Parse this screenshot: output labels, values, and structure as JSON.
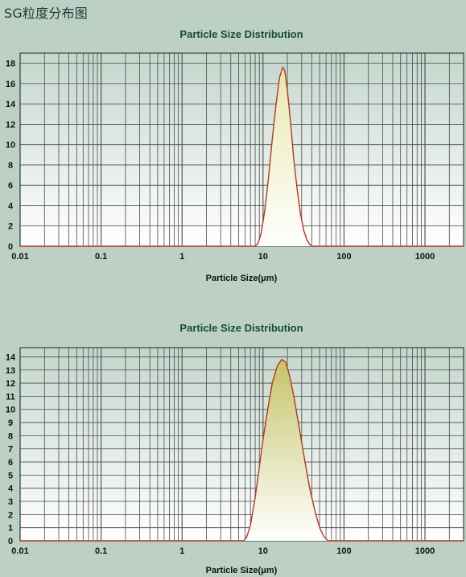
{
  "page": {
    "title": "SG粒度分布图"
  },
  "colors": {
    "background": "#bcd0c6",
    "plot_top": "#c3d6cc",
    "plot_bottom": "#ffffff",
    "grid": "#4a4a4a",
    "curve": "#b5381c",
    "fill_top_1": "#e6e8b0",
    "fill_top_2": "#c5c46a",
    "fill_bottom": "#ffffff",
    "title": "#174a3a"
  },
  "chart_data": [
    {
      "type": "area",
      "title": "Particle Size Distribution",
      "xlabel": "Particle Size(μm)",
      "ylabel": "",
      "x_scale": "log",
      "xlim": [
        0.01,
        3000
      ],
      "ylim": [
        0,
        19
      ],
      "xticks": [
        {
          "value": 0.01,
          "label": "0.01"
        },
        {
          "value": 0.1,
          "label": "0.1"
        },
        {
          "value": 1,
          "label": "1"
        },
        {
          "value": 10,
          "label": "10"
        },
        {
          "value": 100,
          "label": "100"
        },
        {
          "value": 1000,
          "label": "1000"
        }
      ],
      "yticks": [
        {
          "value": 0,
          "label": "0"
        },
        {
          "value": 2,
          "label": "2"
        },
        {
          "value": 4,
          "label": "4"
        },
        {
          "value": 6,
          "label": "6"
        },
        {
          "value": 8,
          "label": "8"
        },
        {
          "value": 10,
          "label": "10"
        },
        {
          "value": 12,
          "label": "12"
        },
        {
          "value": 14,
          "label": "14"
        },
        {
          "value": 16,
          "label": "16"
        },
        {
          "value": 18,
          "label": "18"
        }
      ],
      "grid": true,
      "points": [
        {
          "x": 0.01,
          "y": 0
        },
        {
          "x": 8.0,
          "y": 0
        },
        {
          "x": 8.7,
          "y": 0.3
        },
        {
          "x": 9.5,
          "y": 1.3
        },
        {
          "x": 10.5,
          "y": 3.5
        },
        {
          "x": 11.5,
          "y": 6.2
        },
        {
          "x": 13,
          "y": 10.5
        },
        {
          "x": 14.5,
          "y": 14
        },
        {
          "x": 16,
          "y": 16.6
        },
        {
          "x": 17.5,
          "y": 17.6
        },
        {
          "x": 18.5,
          "y": 17.3
        },
        {
          "x": 20,
          "y": 15.3
        },
        {
          "x": 22,
          "y": 12
        },
        {
          "x": 24,
          "y": 8.5
        },
        {
          "x": 26.5,
          "y": 5.5
        },
        {
          "x": 29,
          "y": 3.2
        },
        {
          "x": 32,
          "y": 1.5
        },
        {
          "x": 35,
          "y": 0.6
        },
        {
          "x": 38,
          "y": 0.15
        },
        {
          "x": 41,
          "y": 0
        },
        {
          "x": 3000,
          "y": 0
        }
      ]
    },
    {
      "type": "area",
      "title": "Particle Size Distribution",
      "xlabel": "Particle Size(μm)",
      "ylabel": "",
      "x_scale": "log",
      "xlim": [
        0.01,
        3000
      ],
      "ylim": [
        0,
        14.7
      ],
      "xticks": [
        {
          "value": 0.01,
          "label": "0.01"
        },
        {
          "value": 0.1,
          "label": "0.1"
        },
        {
          "value": 1,
          "label": "1"
        },
        {
          "value": 10,
          "label": "10"
        },
        {
          "value": 100,
          "label": "100"
        },
        {
          "value": 1000,
          "label": "1000"
        }
      ],
      "yticks": [
        {
          "value": 0,
          "label": "0"
        },
        {
          "value": 1,
          "label": "1"
        },
        {
          "value": 2,
          "label": "2"
        },
        {
          "value": 3,
          "label": "3"
        },
        {
          "value": 4,
          "label": "4"
        },
        {
          "value": 5,
          "label": "5"
        },
        {
          "value": 6,
          "label": "6"
        },
        {
          "value": 7,
          "label": "7"
        },
        {
          "value": 8,
          "label": "8"
        },
        {
          "value": 9,
          "label": "9"
        },
        {
          "value": 10,
          "label": "10"
        },
        {
          "value": 11,
          "label": "11"
        },
        {
          "value": 12,
          "label": "12"
        },
        {
          "value": 13,
          "label": "13"
        },
        {
          "value": 14,
          "label": "14"
        }
      ],
      "grid": true,
      "points": [
        {
          "x": 0.01,
          "y": 0
        },
        {
          "x": 5.8,
          "y": 0
        },
        {
          "x": 6.3,
          "y": 0.3
        },
        {
          "x": 7,
          "y": 1.2
        },
        {
          "x": 8,
          "y": 3.3
        },
        {
          "x": 9,
          "y": 5.6
        },
        {
          "x": 10,
          "y": 7.7
        },
        {
          "x": 11.5,
          "y": 10.1
        },
        {
          "x": 13,
          "y": 12
        },
        {
          "x": 15,
          "y": 13.3
        },
        {
          "x": 17,
          "y": 13.8
        },
        {
          "x": 19,
          "y": 13.6
        },
        {
          "x": 21,
          "y": 12.7
        },
        {
          "x": 24,
          "y": 11
        },
        {
          "x": 28,
          "y": 8.6
        },
        {
          "x": 33,
          "y": 6
        },
        {
          "x": 38,
          "y": 3.9
        },
        {
          "x": 44,
          "y": 2.2
        },
        {
          "x": 50,
          "y": 1
        },
        {
          "x": 56,
          "y": 0.35
        },
        {
          "x": 62,
          "y": 0.05
        },
        {
          "x": 66,
          "y": 0
        },
        {
          "x": 3000,
          "y": 0
        }
      ]
    }
  ]
}
